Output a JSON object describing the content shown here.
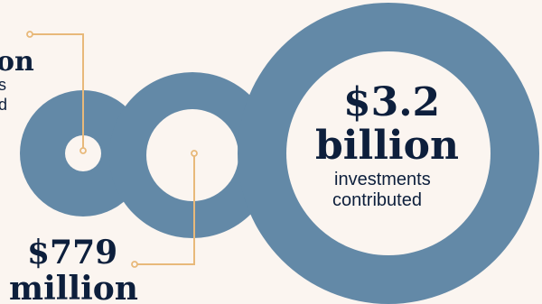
{
  "colors": {
    "background": "#fbf5f0",
    "ring": "#6389a7",
    "ring_inner": "#fbf5f0",
    "leader_line": "#e8b97a",
    "text_dark": "#0d1f3c"
  },
  "stat_left_top": {
    "value_fragment": "on",
    "label_line1_fragment": "s",
    "label_line2_fragment": "d"
  },
  "stat_middle": {
    "value_line1": "$779",
    "value_line2": "million"
  },
  "stat_right": {
    "value_line1": "$3.2",
    "value_line2": "billion",
    "label_line1": "investments",
    "label_line2": "contributed"
  }
}
